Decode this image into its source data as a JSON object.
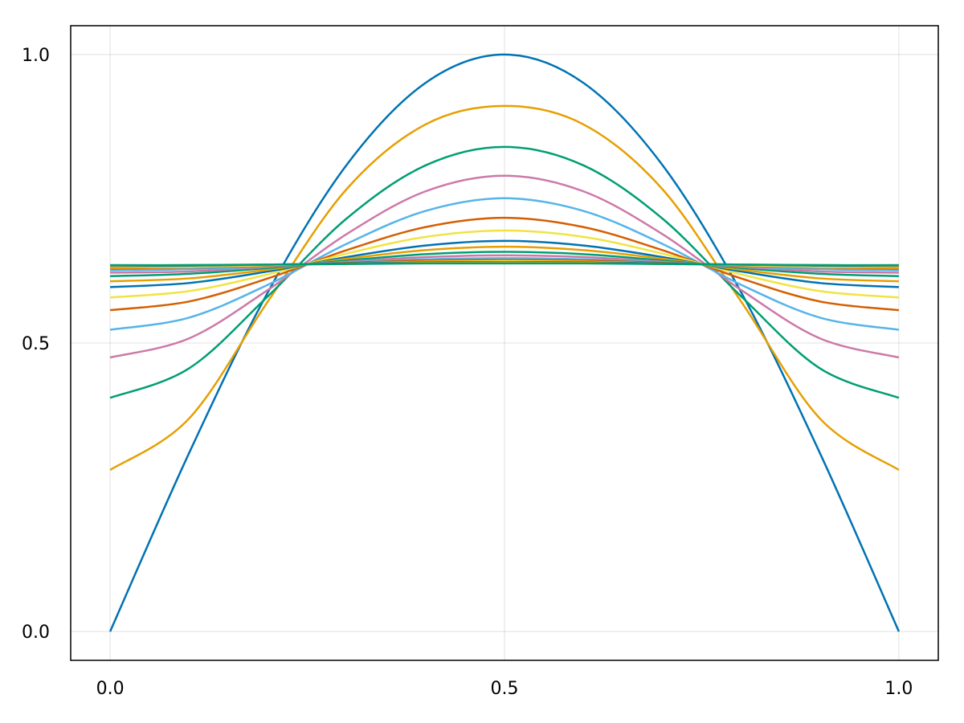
{
  "chart_data": {
    "type": "line",
    "title": "",
    "xlabel": "",
    "ylabel": "",
    "xlim": [
      -0.05,
      1.05
    ],
    "ylim": [
      -0.05,
      1.05
    ],
    "grid": true,
    "legend": "none",
    "xticks": [
      0.0,
      0.5,
      1.0
    ],
    "yticks": [
      0.0,
      0.5,
      1.0
    ],
    "xtick_labels": [
      "0.0",
      "0.5",
      "1.0"
    ],
    "ytick_labels": [
      "0.0",
      "0.5",
      "1.0"
    ],
    "colors": [
      "#0072b2",
      "#e69f00",
      "#009e73",
      "#cc79a7",
      "#56b4e9",
      "#d55e00",
      "#f0e442"
    ],
    "x": [
      0,
      0.1,
      0.2,
      0.3,
      0.4,
      0.5,
      0.6,
      0.7,
      0.8,
      0.9,
      1.0
    ],
    "series": [
      {
        "values": [
          0,
          0.309,
          0.588,
          0.809,
          0.951,
          1.0,
          0.951,
          0.809,
          0.588,
          0.309,
          0
        ]
      },
      {
        "values": [
          0.28,
          0.369,
          0.572,
          0.767,
          0.879,
          0.911,
          0.879,
          0.767,
          0.572,
          0.369,
          0.28
        ]
      },
      {
        "values": [
          0.405,
          0.456,
          0.581,
          0.716,
          0.808,
          0.84,
          0.808,
          0.716,
          0.581,
          0.456,
          0.405
        ]
      },
      {
        "values": [
          0.475,
          0.508,
          0.592,
          0.689,
          0.763,
          0.79,
          0.763,
          0.689,
          0.592,
          0.508,
          0.475
        ]
      },
      {
        "values": [
          0.523,
          0.544,
          0.601,
          0.672,
          0.729,
          0.751,
          0.729,
          0.672,
          0.601,
          0.544,
          0.523
        ]
      },
      {
        "values": [
          0.557,
          0.572,
          0.612,
          0.661,
          0.701,
          0.717,
          0.701,
          0.661,
          0.612,
          0.572,
          0.557
        ]
      },
      {
        "values": [
          0.579,
          0.59,
          0.619,
          0.655,
          0.684,
          0.695,
          0.684,
          0.655,
          0.619,
          0.59,
          0.579
        ]
      },
      {
        "values": [
          0.597,
          0.604,
          0.624,
          0.649,
          0.669,
          0.677,
          0.669,
          0.649,
          0.624,
          0.604,
          0.597
        ]
      },
      {
        "values": [
          0.607,
          0.612,
          0.627,
          0.646,
          0.661,
          0.667,
          0.661,
          0.646,
          0.627,
          0.612,
          0.607
        ]
      },
      {
        "values": [
          0.616,
          0.62,
          0.63,
          0.643,
          0.654,
          0.658,
          0.654,
          0.643,
          0.63,
          0.62,
          0.616
        ]
      },
      {
        "values": [
          0.622,
          0.624,
          0.632,
          0.641,
          0.649,
          0.652,
          0.649,
          0.641,
          0.632,
          0.624,
          0.622
        ]
      },
      {
        "values": [
          0.626,
          0.628,
          0.633,
          0.64,
          0.645,
          0.647,
          0.645,
          0.64,
          0.633,
          0.628,
          0.626
        ]
      },
      {
        "values": [
          0.629,
          0.631,
          0.634,
          0.639,
          0.643,
          0.644,
          0.643,
          0.639,
          0.634,
          0.631,
          0.629
        ]
      },
      {
        "values": [
          0.631,
          0.632,
          0.635,
          0.638,
          0.641,
          0.642,
          0.641,
          0.638,
          0.635,
          0.632,
          0.631
        ]
      },
      {
        "values": [
          0.633,
          0.634,
          0.636,
          0.638,
          0.64,
          0.64,
          0.64,
          0.638,
          0.636,
          0.634,
          0.633
        ]
      },
      {
        "values": [
          0.634,
          0.635,
          0.636,
          0.637,
          0.639,
          0.639,
          0.639,
          0.637,
          0.636,
          0.635,
          0.634
        ]
      },
      {
        "values": [
          0.635,
          0.635,
          0.636,
          0.637,
          0.638,
          0.638,
          0.638,
          0.637,
          0.636,
          0.635,
          0.635
        ]
      }
    ]
  }
}
